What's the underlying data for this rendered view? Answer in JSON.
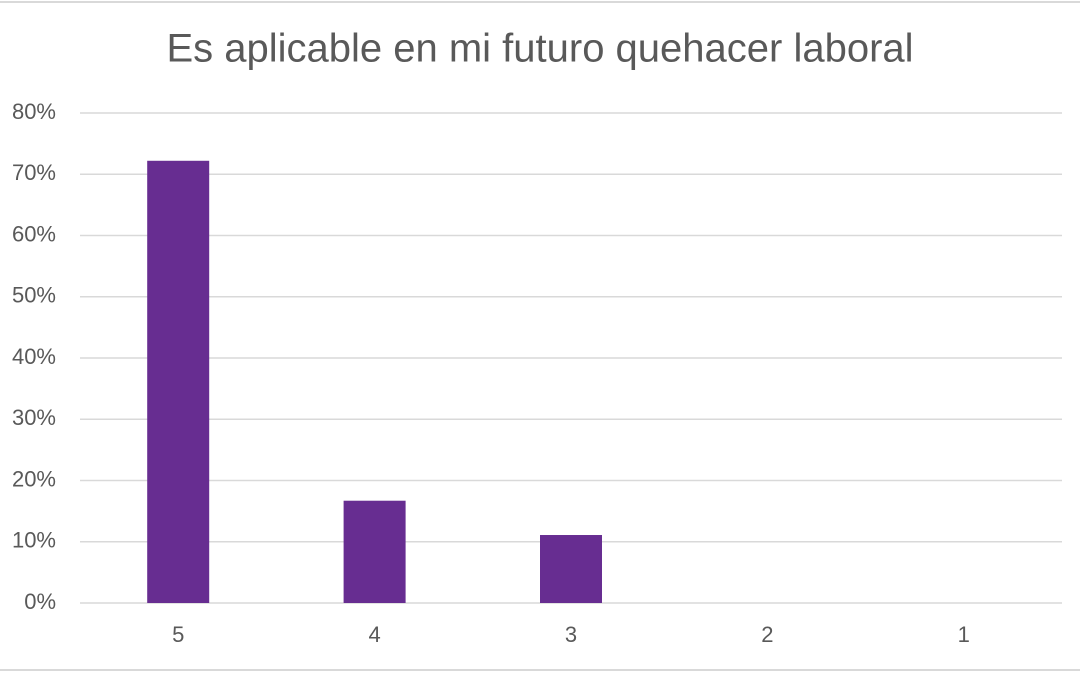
{
  "chart_data": {
    "type": "bar",
    "title": "Es aplicable en mi futuro quehacer laboral",
    "categories": [
      "5",
      "4",
      "3",
      "2",
      "1"
    ],
    "values": [
      72.2,
      16.7,
      11.1,
      0,
      0
    ],
    "color": "#672d91",
    "ylim": [
      0,
      80
    ],
    "yticks": [
      {
        "value": 0,
        "label": "0%"
      },
      {
        "value": 10,
        "label": "10%"
      },
      {
        "value": 20,
        "label": "20%"
      },
      {
        "value": 30,
        "label": "30%"
      },
      {
        "value": 40,
        "label": "40%"
      },
      {
        "value": 50,
        "label": "50%"
      },
      {
        "value": 60,
        "label": "60%"
      },
      {
        "value": 70,
        "label": "70%"
      },
      {
        "value": 80,
        "label": "80%"
      }
    ],
    "grid": true
  }
}
